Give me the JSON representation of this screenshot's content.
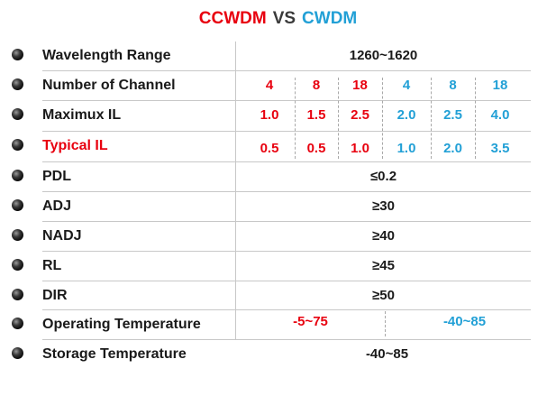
{
  "title": {
    "left": "CCWDM",
    "vs": "VS",
    "right": "CWDM"
  },
  "rows": [
    {
      "label": "Wavelength Range",
      "value": "1260~1620"
    },
    {
      "label": "Number of Channel",
      "values": [
        "4",
        "8",
        "18",
        "4",
        "8",
        "18"
      ]
    },
    {
      "label": "Maximux IL",
      "values": [
        "1.0",
        "1.5",
        "2.5",
        "2.0",
        "2.5",
        "4.0"
      ]
    },
    {
      "label": "Typical IL",
      "values": [
        "0.5",
        "0.5",
        "1.0",
        "1.0",
        "2.0",
        "3.5"
      ]
    },
    {
      "label": "PDL",
      "value": "≤0.2"
    },
    {
      "label": "ADJ",
      "value": "≥30"
    },
    {
      "label": "NADJ",
      "value": "≥40"
    },
    {
      "label": "RL",
      "value": "≥45"
    },
    {
      "label": "DIR",
      "value": "≥50"
    },
    {
      "label": "Operating Temperature",
      "ccwdm": "-5~75",
      "cwdm": "-40~85"
    },
    {
      "label": "Storage Temperature",
      "value": "-40~85"
    }
  ],
  "colors": {
    "ccwdm": "#e8000f",
    "cwdm": "#22a0d6",
    "text": "#1a1a1a",
    "rule": "#c8c8c8",
    "bullet": "bullet-icon"
  }
}
